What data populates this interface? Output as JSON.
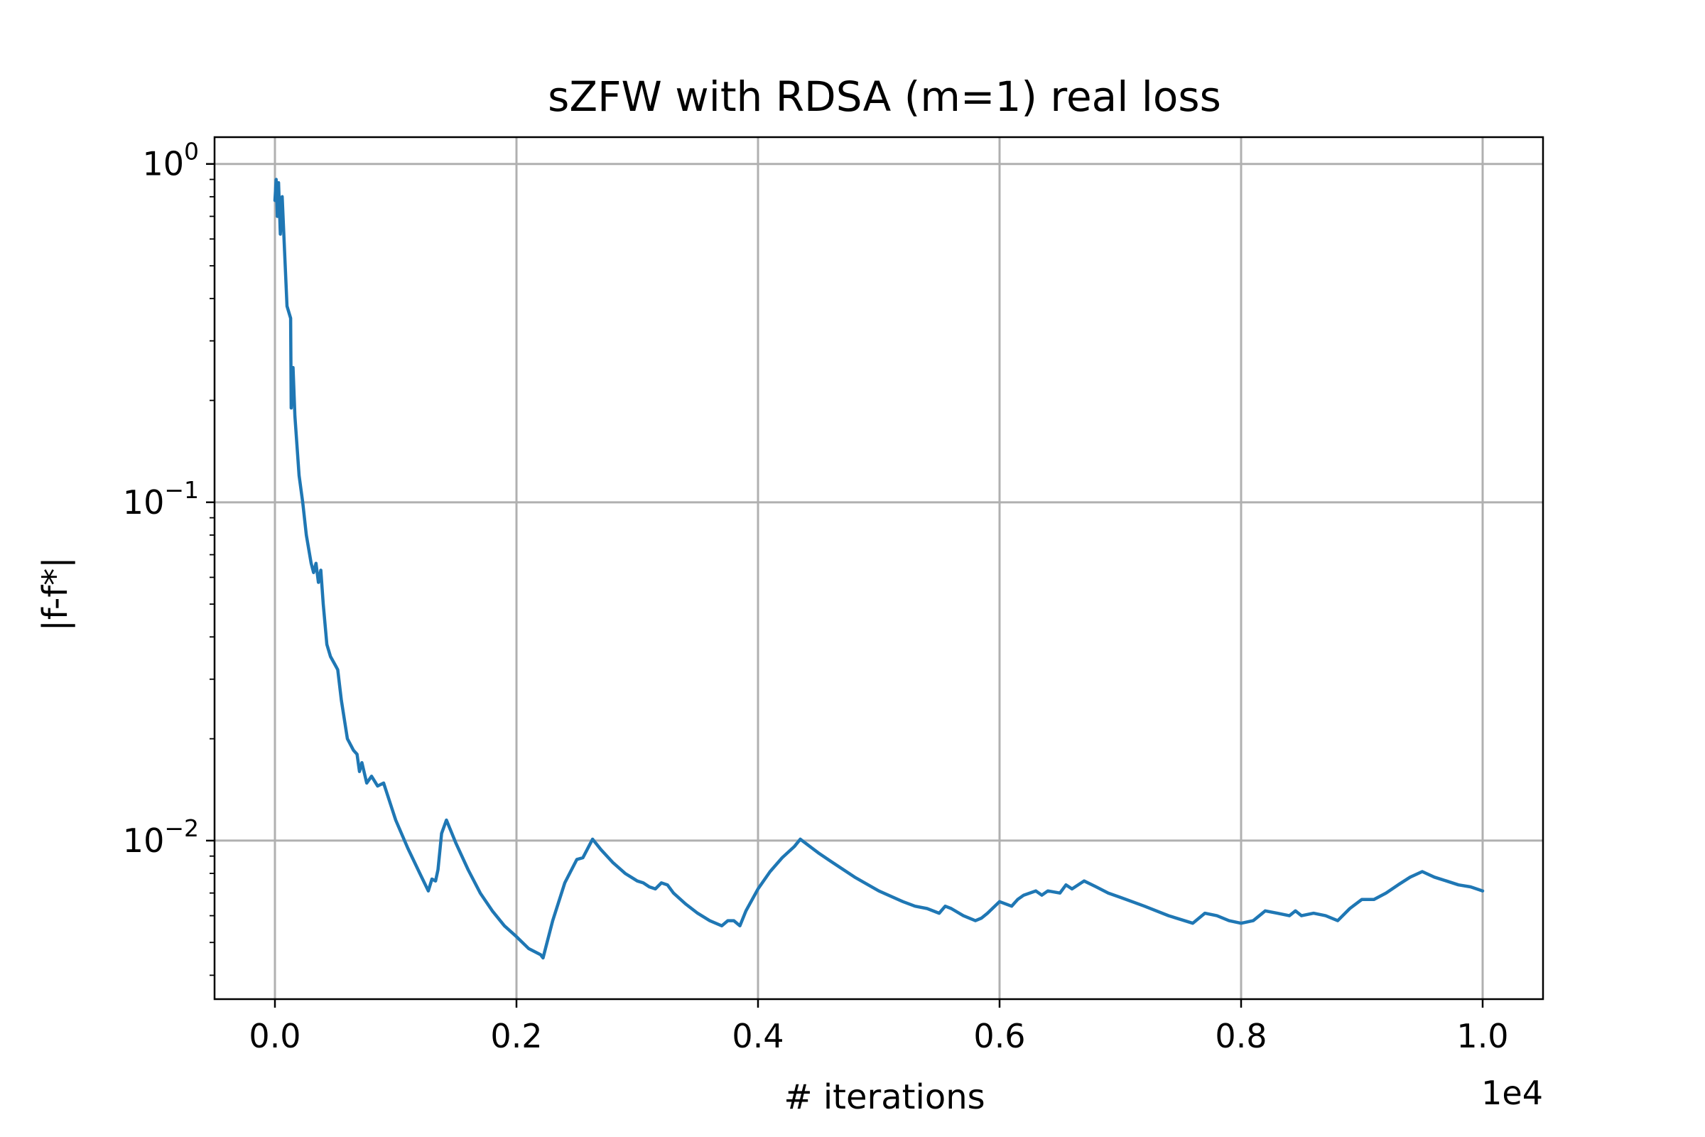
{
  "chart_data": {
    "type": "line",
    "title": "sZFW with RDSA (m=1) real loss",
    "xlabel": "# iterations",
    "ylabel": "|f-f*|",
    "x_offset_label": "1e4",
    "x_scale_factor": 10000,
    "y_scale": "log",
    "xlim": [
      -500,
      10500
    ],
    "ylim": [
      0.0034,
      1.2
    ],
    "grid": true,
    "x_ticks": [
      {
        "value": 0,
        "label": "0.0"
      },
      {
        "value": 2000,
        "label": "0.2"
      },
      {
        "value": 4000,
        "label": "0.4"
      },
      {
        "value": 6000,
        "label": "0.6"
      },
      {
        "value": 8000,
        "label": "0.8"
      },
      {
        "value": 10000,
        "label": "1.0"
      }
    ],
    "y_ticks": [
      {
        "value": 1,
        "base": "10",
        "exp": "0"
      },
      {
        "value": 0.1,
        "base": "10",
        "exp": "−1"
      },
      {
        "value": 0.01,
        "base": "10",
        "exp": "−2"
      }
    ],
    "series": [
      {
        "color": "#1f77b4",
        "points": [
          [
            0,
            0.78
          ],
          [
            10,
            0.9
          ],
          [
            20,
            0.7
          ],
          [
            30,
            0.88
          ],
          [
            45,
            0.62
          ],
          [
            60,
            0.8
          ],
          [
            80,
            0.55
          ],
          [
            100,
            0.38
          ],
          [
            130,
            0.35
          ],
          [
            135,
            0.19
          ],
          [
            150,
            0.25
          ],
          [
            165,
            0.18
          ],
          [
            200,
            0.12
          ],
          [
            230,
            0.1
          ],
          [
            260,
            0.08
          ],
          [
            300,
            0.066
          ],
          [
            320,
            0.062
          ],
          [
            340,
            0.066
          ],
          [
            360,
            0.058
          ],
          [
            380,
            0.063
          ],
          [
            400,
            0.05
          ],
          [
            430,
            0.038
          ],
          [
            460,
            0.035
          ],
          [
            500,
            0.033
          ],
          [
            520,
            0.032
          ],
          [
            550,
            0.026
          ],
          [
            600,
            0.02
          ],
          [
            650,
            0.0185
          ],
          [
            680,
            0.018
          ],
          [
            700,
            0.016
          ],
          [
            720,
            0.017
          ],
          [
            760,
            0.0148
          ],
          [
            800,
            0.0155
          ],
          [
            850,
            0.0145
          ],
          [
            900,
            0.0148
          ],
          [
            1000,
            0.0115
          ],
          [
            1100,
            0.0095
          ],
          [
            1200,
            0.008
          ],
          [
            1270,
            0.0071
          ],
          [
            1300,
            0.0077
          ],
          [
            1330,
            0.0076
          ],
          [
            1350,
            0.0082
          ],
          [
            1380,
            0.0105
          ],
          [
            1420,
            0.0115
          ],
          [
            1500,
            0.0098
          ],
          [
            1600,
            0.0082
          ],
          [
            1700,
            0.007
          ],
          [
            1800,
            0.0062
          ],
          [
            1900,
            0.0056
          ],
          [
            2000,
            0.0052
          ],
          [
            2100,
            0.0048
          ],
          [
            2200,
            0.0046
          ],
          [
            2220,
            0.0045
          ],
          [
            2300,
            0.0058
          ],
          [
            2400,
            0.0075
          ],
          [
            2500,
            0.0088
          ],
          [
            2550,
            0.0089
          ],
          [
            2630,
            0.0101
          ],
          [
            2700,
            0.0094
          ],
          [
            2800,
            0.0086
          ],
          [
            2900,
            0.008
          ],
          [
            3000,
            0.0076
          ],
          [
            3050,
            0.0075
          ],
          [
            3100,
            0.0073
          ],
          [
            3150,
            0.0072
          ],
          [
            3200,
            0.0075
          ],
          [
            3250,
            0.0074
          ],
          [
            3300,
            0.007
          ],
          [
            3400,
            0.0065
          ],
          [
            3500,
            0.0061
          ],
          [
            3600,
            0.0058
          ],
          [
            3700,
            0.0056
          ],
          [
            3750,
            0.0058
          ],
          [
            3800,
            0.0058
          ],
          [
            3850,
            0.0056
          ],
          [
            3900,
            0.0062
          ],
          [
            4000,
            0.0072
          ],
          [
            4100,
            0.0081
          ],
          [
            4200,
            0.0089
          ],
          [
            4300,
            0.0096
          ],
          [
            4350,
            0.0101
          ],
          [
            4500,
            0.0092
          ],
          [
            4600,
            0.0087
          ],
          [
            4800,
            0.0078
          ],
          [
            5000,
            0.0071
          ],
          [
            5200,
            0.0066
          ],
          [
            5300,
            0.0064
          ],
          [
            5400,
            0.0063
          ],
          [
            5500,
            0.0061
          ],
          [
            5550,
            0.0064
          ],
          [
            5600,
            0.0063
          ],
          [
            5700,
            0.006
          ],
          [
            5800,
            0.0058
          ],
          [
            5850,
            0.0059
          ],
          [
            5900,
            0.0061
          ],
          [
            6000,
            0.0066
          ],
          [
            6100,
            0.0064
          ],
          [
            6150,
            0.0067
          ],
          [
            6200,
            0.0069
          ],
          [
            6300,
            0.0071
          ],
          [
            6350,
            0.0069
          ],
          [
            6400,
            0.0071
          ],
          [
            6500,
            0.007
          ],
          [
            6550,
            0.0074
          ],
          [
            6600,
            0.0072
          ],
          [
            6700,
            0.0076
          ],
          [
            6800,
            0.0073
          ],
          [
            6900,
            0.007
          ],
          [
            7000,
            0.0068
          ],
          [
            7200,
            0.0064
          ],
          [
            7400,
            0.006
          ],
          [
            7600,
            0.0057
          ],
          [
            7700,
            0.0061
          ],
          [
            7800,
            0.006
          ],
          [
            7900,
            0.0058
          ],
          [
            8000,
            0.0057
          ],
          [
            8100,
            0.0058
          ],
          [
            8200,
            0.0062
          ],
          [
            8300,
            0.0061
          ],
          [
            8400,
            0.006
          ],
          [
            8450,
            0.0062
          ],
          [
            8500,
            0.006
          ],
          [
            8600,
            0.0061
          ],
          [
            8700,
            0.006
          ],
          [
            8800,
            0.0058
          ],
          [
            8900,
            0.0063
          ],
          [
            9000,
            0.0067
          ],
          [
            9100,
            0.0067
          ],
          [
            9200,
            0.007
          ],
          [
            9300,
            0.0074
          ],
          [
            9400,
            0.0078
          ],
          [
            9500,
            0.0081
          ],
          [
            9600,
            0.0078
          ],
          [
            9700,
            0.0076
          ],
          [
            9800,
            0.0074
          ],
          [
            9900,
            0.0073
          ],
          [
            10000,
            0.0071
          ]
        ]
      }
    ]
  }
}
